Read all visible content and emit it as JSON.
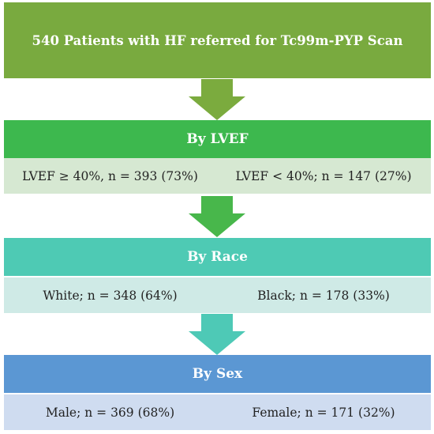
{
  "top": {
    "label": "540 Patients with HF referred for Tc99m-PYP Scan",
    "color": "#79aa3f"
  },
  "stages": [
    {
      "heading": "By LVEF",
      "header_color": "#3db84e",
      "arrow_color": "#48b74b",
      "sub_color": "#d6e8d2",
      "left": "LVEF ≥ 40%, n = 393 (73%)",
      "right": "LVEF < 40%; n = 147 (27%)"
    },
    {
      "heading": "By Race",
      "header_color": "#4ecab4",
      "arrow_color": "#45b84b",
      "sub_color": "#cfeae6",
      "left": "White; n = 348 (64%)",
      "right": "Black; n = 178 (33%)"
    },
    {
      "heading": "By Sex",
      "header_color": "#5b97d3",
      "arrow_color": "#4ec9b6",
      "sub_color": "#cfdcf0",
      "left": "Male; n = 369 (68%)",
      "right": "Female; n = 171 (32%)"
    }
  ],
  "first_arrow_color": "#7bab3e"
}
